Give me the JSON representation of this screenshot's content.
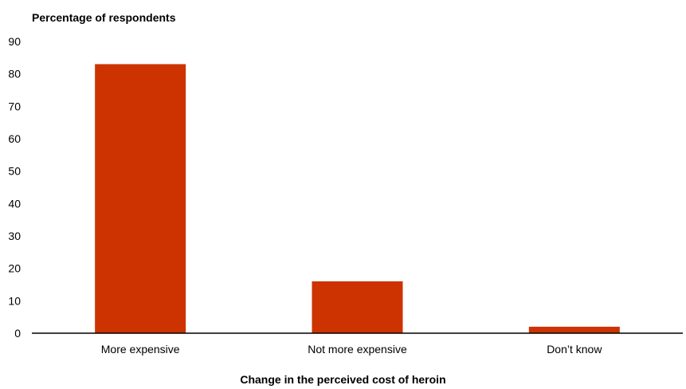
{
  "chart_data": {
    "type": "bar",
    "ylabel": "Percentage of respondents",
    "xlabel": "Change in the perceived cost of heroin",
    "categories": [
      "More expensive",
      "Not more expensive",
      "Don’t know"
    ],
    "values": [
      83,
      16,
      2
    ],
    "ylim": [
      0,
      90
    ],
    "yticks": [
      0,
      10,
      20,
      30,
      40,
      50,
      60,
      70,
      80,
      90
    ],
    "bar_color": "#cc3300",
    "grid": false,
    "legend": "none"
  }
}
